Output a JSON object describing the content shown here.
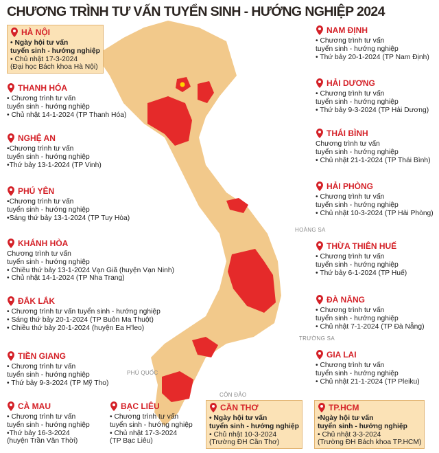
{
  "title": "CHƯƠNG TRÌNH TƯ VẤN TUYỂN SINH - HƯỚNG NGHIỆP 2024",
  "locations": [
    {
      "name": "HÀ NỘI",
      "lines": [
        "• Ngày hội tư vấn",
        "tuyển sinh - hướng nghiệp",
        "• Chủ nhật 17-3-2024",
        "(Đại học Bách khoa Hà Nội)"
      ]
    },
    {
      "name": "THANH HÓA",
      "lines": [
        "• Chương trình tư vấn",
        "tuyển sinh - hướng nghiệp",
        "• Chủ nhật 14-1-2024 (TP Thanh Hóa)"
      ]
    },
    {
      "name": "NGHỆ AN",
      "lines": [
        "•Chương trình tư vấn",
        "tuyển sinh - hướng nghiệp",
        "•Thứ bảy 13-1-2024 (TP Vinh)"
      ]
    },
    {
      "name": "PHÚ YÊN",
      "lines": [
        "•Chương trình tư vấn",
        "tuyển sinh - hướng nghiệp",
        "•Sáng thứ bảy 13-1-2024 (TP Tuy Hòa)"
      ]
    },
    {
      "name": "KHÁNH HÒA",
      "lines": [
        "Chương trình tư vấn",
        "tuyển sinh - hướng nghiệp",
        "• Chiều thứ bảy 13-1-2024 Vạn Giã (huyện Vạn Ninh)",
        "• Chủ nhật 14-1-2024 (TP Nha Trang)"
      ]
    },
    {
      "name": "ĐẮK LẮK",
      "lines": [
        "• Chương trình tư vấn tuyển sinh - hướng nghiệp",
        "• Sáng thứ bảy 20-1-2024 (TP Buôn Ma Thuột)",
        "• Chiều thứ bảy 20-1-2024 (huyện Ea H'leo)"
      ]
    },
    {
      "name": "TIỀN GIANG",
      "lines": [
        "• Chương trình tư vấn",
        "tuyển sinh - hướng nghiệp",
        "• Thứ bảy 9-3-2024 (TP Mỹ Tho)"
      ]
    },
    {
      "name": "CÀ MAU",
      "lines": [
        "• Chương trình tư vấn",
        "tuyển sinh - hướng nghiệp",
        "•Thứ bảy 16-3-2024",
        "(huyện Trần Văn Thời)"
      ]
    },
    {
      "name": "BẠC LIÊU",
      "lines": [
        "• Chương trình tư vấn",
        "tuyển sinh - hướng nghiệp",
        "• Chủ nhật 17-3-2024",
        "(TP Bạc Liêu)"
      ]
    },
    {
      "name": "CẦN THƠ",
      "lines": [
        "• Ngày hội tư vấn",
        "tuyển sinh - hướng nghiệp",
        "• Chủ nhật 10-3-2024",
        "(Trường ĐH Cần Thơ)"
      ]
    },
    {
      "name": "TP.HCM",
      "lines": [
        "•Ngày hội tư vấn",
        "tuyển sinh - hướng nghiệp",
        "• Chủ nhật 3-3-2024",
        "(Trường ĐH Bách khoa TP.HCM)"
      ]
    },
    {
      "name": "NAM ĐỊNH",
      "lines": [
        "• Chương trình tư vấn",
        "tuyển sinh - hướng nghiệp",
        "• Thứ bảy 20-1-2024 (TP Nam Định)"
      ]
    },
    {
      "name": "HẢI DƯƠNG",
      "lines": [
        "• Chương trình tư vấn",
        "tuyển sinh - hướng nghiệp",
        "• Thứ bảy 9-3-2024 (TP Hải Dương)"
      ]
    },
    {
      "name": "THÁI BÌNH",
      "lines": [
        "Chương trình tư vấn",
        "tuyển sinh - hướng nghiệp",
        "• Chủ nhật 21-1-2024 (TP Thái Bình)"
      ]
    },
    {
      "name": "HẢI PHÒNG",
      "lines": [
        "• Chương trình tư vấn",
        "tuyển sinh - hướng nghiệp",
        "• Chủ nhật 10-3-2024 (TP Hải Phòng)"
      ]
    },
    {
      "name": "THỪA THIÊN HUẾ",
      "lines": [
        "• Chương trình tư vấn",
        "tuyển sinh - hướng nghiệp",
        "• Thứ bảy 6-1-2024 (TP Huế)"
      ]
    },
    {
      "name": "ĐÀ NẴNG",
      "lines": [
        "• Chương trình tư vấn",
        "tuyển sinh - hướng nghiệp",
        "• Chủ nhật 7-1-2024 (TP Đà Nẵng)"
      ]
    },
    {
      "name": "GIA LAI",
      "lines": [
        "• Chương trình tư vấn",
        "tuyển sinh - hướng nghiệp",
        "• Chủ nhật 21-1-2024 (TP Pleiku)"
      ]
    }
  ],
  "map_labels": [
    "HOÀNG SA",
    "TRƯỜNG SA",
    "PHÚ QUỐC",
    "CÔN ĐẢO"
  ]
}
